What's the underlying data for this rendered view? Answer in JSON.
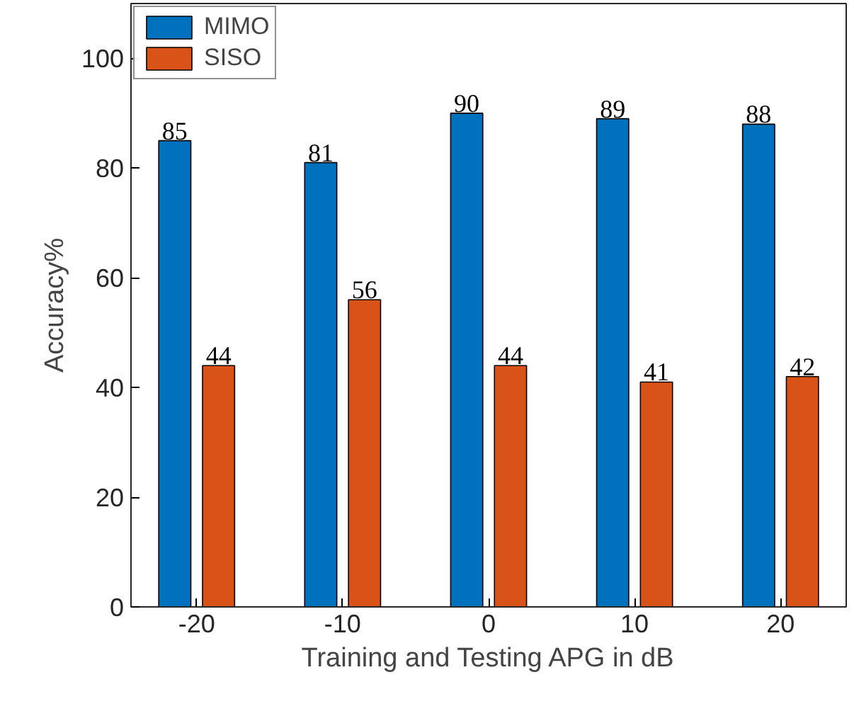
{
  "chart_data": {
    "type": "bar",
    "xlabel": "Training and Testing APG in dB",
    "ylabel": "Accuracy%",
    "categories": [
      "-20",
      "-10",
      "0",
      "10",
      "20"
    ],
    "series": [
      {
        "name": "MIMO",
        "color": "#0072bd",
        "values": [
          85,
          81,
          90,
          89,
          88
        ]
      },
      {
        "name": "SISO",
        "color": "#d95319",
        "values": [
          44,
          56,
          44,
          41,
          42
        ]
      }
    ],
    "ylim": [
      0,
      110
    ],
    "yticks": [
      0,
      20,
      40,
      60,
      80,
      100
    ],
    "grid": false,
    "legend": "top left",
    "data_labels": true
  }
}
